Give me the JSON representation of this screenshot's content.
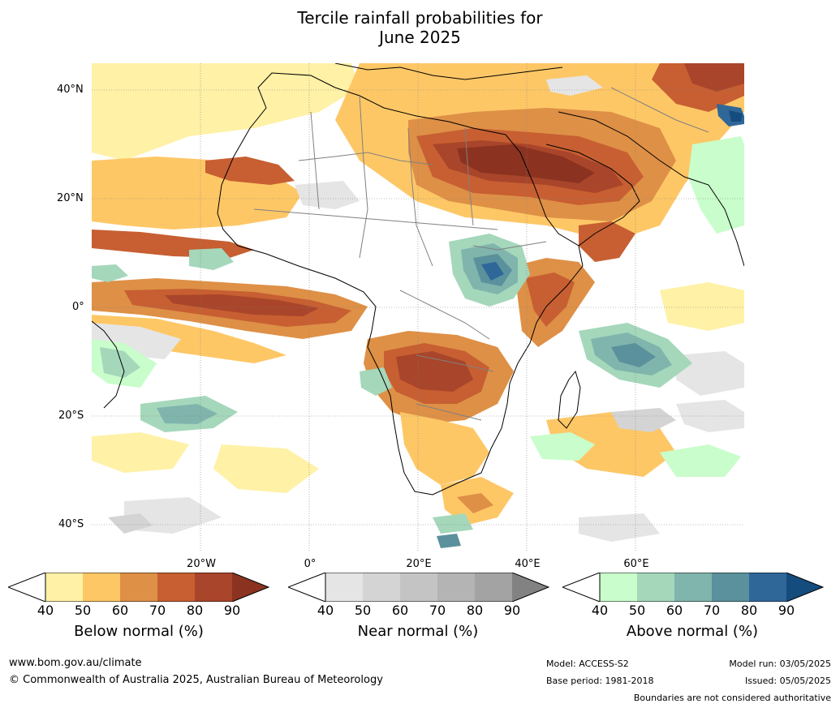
{
  "title": {
    "line1": "Tercile rainfall probabilities for",
    "line2": "June 2025"
  },
  "map": {
    "lat_labels": [
      "40°N",
      "20°N",
      "0°",
      "20°S",
      "40°S"
    ],
    "lon_labels": [
      "20°W",
      "0°",
      "20°E",
      "40°E",
      "60°E"
    ]
  },
  "colorbars": [
    {
      "title": "Below normal (%)",
      "ticks": [
        "40",
        "50",
        "60",
        "70",
        "80",
        "90"
      ],
      "colors": [
        "#fff1a6",
        "#fec766",
        "#de9046",
        "#c75f32",
        "#a9452a",
        "#8b3320"
      ]
    },
    {
      "title": "Near normal (%)",
      "ticks": [
        "40",
        "50",
        "60",
        "70",
        "80",
        "90"
      ],
      "colors": [
        "#e5e5e5",
        "#d4d4d4",
        "#c4c4c4",
        "#b4b4b4",
        "#a3a3a3",
        "#828282"
      ]
    },
    {
      "title": "Above normal (%)",
      "ticks": [
        "40",
        "50",
        "60",
        "70",
        "80",
        "90"
      ],
      "colors": [
        "#c9fdcb",
        "#a5d7bb",
        "#80b5ad",
        "#5a919c",
        "#2f6799",
        "#154c7e"
      ]
    }
  ],
  "footer": {
    "url": "www.bom.gov.au/climate",
    "copyright": "© Commonwealth of Australia 2025, Australian Bureau of Meteorology",
    "model": "Model: ACCESS-S2",
    "base_period": "Base period: 1981-2018",
    "model_run": "Model run: 03/05/2025",
    "issued": "Issued: 05/05/2025",
    "boundaries": "Boundaries are not considered authoritative"
  }
}
